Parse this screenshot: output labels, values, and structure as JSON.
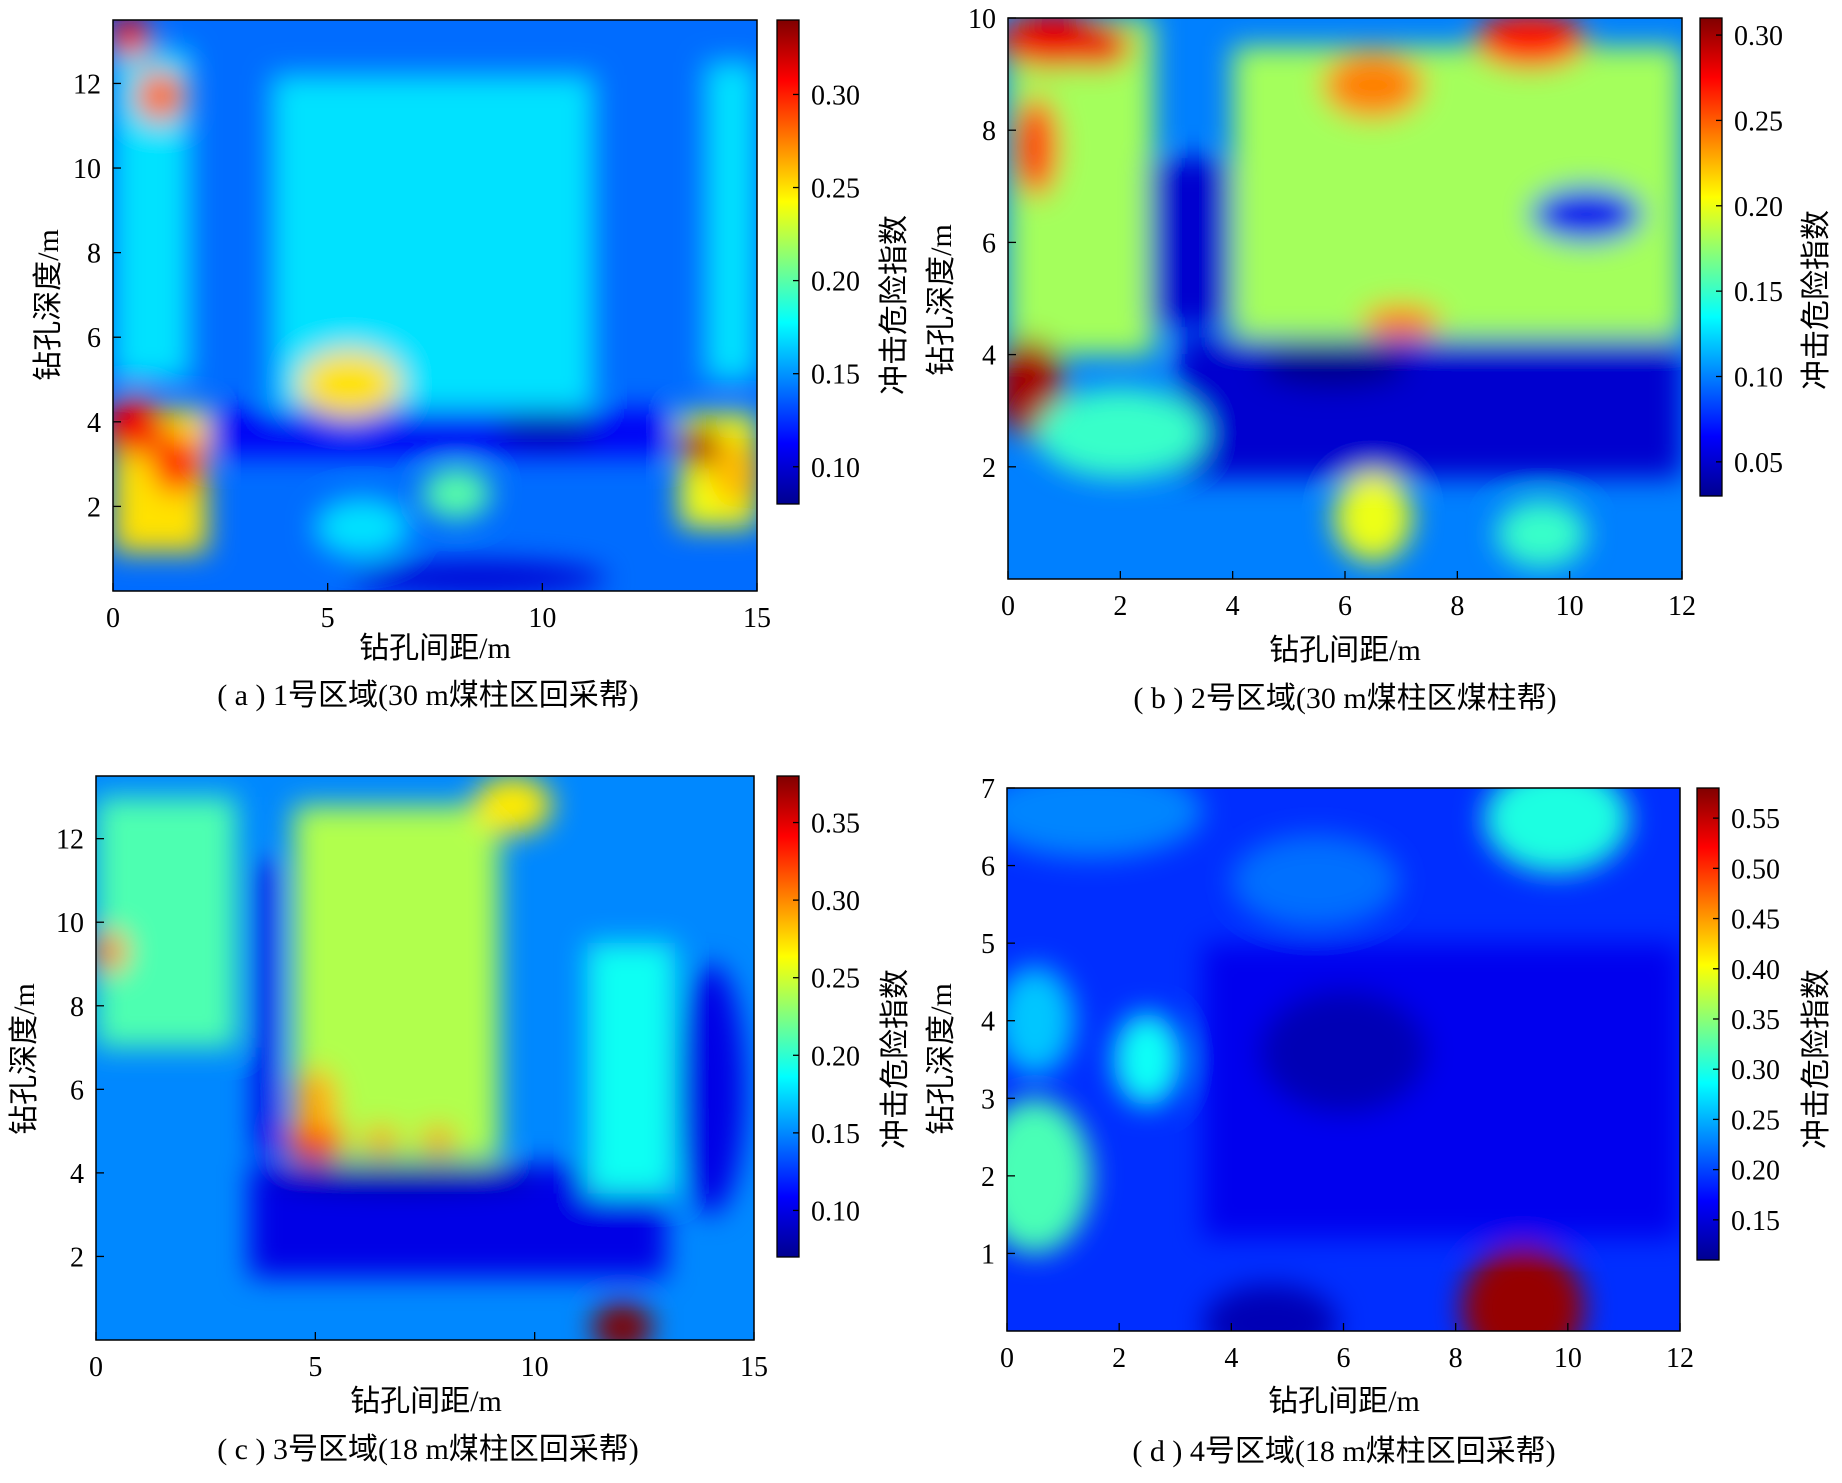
{
  "colormap": [
    "#00008f",
    "#0000ff",
    "#0080ff",
    "#00ffff",
    "#80ff80",
    "#ffff00",
    "#ff8000",
    "#ff0000",
    "#800000"
  ],
  "chart_data": [
    {
      "type": "heatmap",
      "caption": "( a ) 1号区域(30 m煤柱区回采帮)",
      "xlabel": "钻孔间距/m",
      "ylabel": "钻孔深度/m",
      "colorbar_label": "冲击危险指数",
      "xlim": [
        0,
        15
      ],
      "ylim": [
        0,
        13.5
      ],
      "xticks": [
        0,
        5,
        10,
        15
      ],
      "yticks": [
        2,
        4,
        6,
        8,
        10,
        12
      ],
      "clim": [
        0.08,
        0.34
      ],
      "cticks": [
        0.1,
        0.15,
        0.2,
        0.25,
        0.3
      ],
      "background": 0.14,
      "features": [
        {
          "shape": "rect",
          "x0": 4.6,
          "x1": 7.6,
          "y0": 4.3,
          "y1": 10.8,
          "value": 0.2
        },
        {
          "shape": "rect",
          "x0": 3.7,
          "x1": 11.2,
          "y0": 4.3,
          "y1": 12.2,
          "value": 0.17
        },
        {
          "shape": "rect",
          "x0": 2.0,
          "x1": 13.0,
          "y0": 3.2,
          "y1": 4.3,
          "value": 0.11
        },
        {
          "shape": "rect",
          "x0": 0.0,
          "x1": 2.2,
          "y0": 0.9,
          "y1": 4.3,
          "value": 0.25
        },
        {
          "shape": "rect",
          "x0": 13.2,
          "x1": 15.0,
          "y0": 1.5,
          "y1": 4.2,
          "value": 0.24
        },
        {
          "shape": "rect",
          "x0": 0.0,
          "x1": 1.8,
          "y0": 5.0,
          "y1": 12.8,
          "value": 0.17
        },
        {
          "shape": "rect",
          "x0": 13.8,
          "x1": 15.0,
          "y0": 5.0,
          "y1": 12.5,
          "value": 0.17
        },
        {
          "shape": "blob",
          "x": 5.5,
          "y": 4.9,
          "rx": 1.2,
          "ry": 0.8,
          "value": 0.25
        },
        {
          "shape": "blob",
          "x": 0.5,
          "y": 3.9,
          "rx": 0.7,
          "ry": 0.7,
          "value": 0.31
        },
        {
          "shape": "blob",
          "x": 1.5,
          "y": 3.0,
          "rx": 0.6,
          "ry": 0.7,
          "value": 0.3
        },
        {
          "shape": "blob",
          "x": 0.4,
          "y": 13.1,
          "rx": 0.5,
          "ry": 0.5,
          "value": 0.31
        },
        {
          "shape": "blob",
          "x": 1.1,
          "y": 11.7,
          "rx": 0.6,
          "ry": 0.6,
          "value": 0.28
        },
        {
          "shape": "blob",
          "x": 13.7,
          "y": 3.4,
          "rx": 0.5,
          "ry": 0.5,
          "value": 0.33
        },
        {
          "shape": "blob",
          "x": 14.5,
          "y": 2.8,
          "rx": 0.6,
          "ry": 0.8,
          "value": 0.26
        },
        {
          "shape": "blob",
          "x": 10.1,
          "y": 3.8,
          "rx": 1.2,
          "ry": 0.4,
          "value": 0.09
        },
        {
          "shape": "blob",
          "x": 8.0,
          "y": 2.3,
          "rx": 0.8,
          "ry": 0.6,
          "value": 0.2
        },
        {
          "shape": "blob",
          "x": 5.8,
          "y": 1.5,
          "rx": 1.1,
          "ry": 0.7,
          "value": 0.17
        },
        {
          "shape": "blob",
          "x": 8.5,
          "y": 0.3,
          "rx": 3.0,
          "ry": 0.4,
          "value": 0.1
        }
      ]
    },
    {
      "type": "heatmap",
      "caption": "( b ) 2号区域(30 m煤柱区煤柱帮)",
      "xlabel": "钻孔间距/m",
      "ylabel": "钻孔深度/m",
      "colorbar_label": "冲击危险指数",
      "xlim": [
        0,
        12
      ],
      "ylim": [
        0,
        10
      ],
      "xticks": [
        0,
        2,
        4,
        6,
        8,
        10,
        12
      ],
      "yticks": [
        2,
        4,
        6,
        8,
        10
      ],
      "clim": [
        0.03,
        0.31
      ],
      "cticks": [
        0.05,
        0.1,
        0.15,
        0.2,
        0.25,
        0.3
      ],
      "background": 0.1,
      "features": [
        {
          "shape": "rect",
          "x0": 4.0,
          "x1": 12.0,
          "y0": 4.3,
          "y1": 9.5,
          "value": 0.18
        },
        {
          "shape": "rect",
          "x0": 0.0,
          "x1": 2.6,
          "y0": 4.0,
          "y1": 10.0,
          "value": 0.18
        },
        {
          "shape": "rect",
          "x0": 2.5,
          "x1": 4.0,
          "y0": 4.5,
          "y1": 7.5,
          "value": 0.05
        },
        {
          "shape": "rect",
          "x0": 3.0,
          "x1": 12.0,
          "y0": 1.8,
          "y1": 4.3,
          "value": 0.05
        },
        {
          "shape": "blob",
          "x": 0.8,
          "y": 9.6,
          "rx": 1.0,
          "ry": 0.5,
          "value": 0.28
        },
        {
          "shape": "blob",
          "x": 1.6,
          "y": 9.5,
          "rx": 0.6,
          "ry": 0.4,
          "value": 0.28
        },
        {
          "shape": "blob",
          "x": 9.3,
          "y": 9.6,
          "rx": 1.0,
          "ry": 0.5,
          "value": 0.27
        },
        {
          "shape": "blob",
          "x": 0.4,
          "y": 3.4,
          "rx": 0.6,
          "ry": 0.9,
          "value": 0.3
        },
        {
          "shape": "blob",
          "x": 0.5,
          "y": 7.7,
          "rx": 0.4,
          "ry": 0.9,
          "value": 0.26
        },
        {
          "shape": "blob",
          "x": 6.5,
          "y": 8.8,
          "rx": 0.9,
          "ry": 0.6,
          "value": 0.24
        },
        {
          "shape": "blob",
          "x": 10.3,
          "y": 6.5,
          "rx": 1.0,
          "ry": 0.5,
          "value": 0.06
        },
        {
          "shape": "blob",
          "x": 5.8,
          "y": 3.8,
          "rx": 1.3,
          "ry": 0.4,
          "value": 0.03
        },
        {
          "shape": "blob",
          "x": 6.5,
          "y": 1.1,
          "rx": 0.7,
          "ry": 0.8,
          "value": 0.2
        },
        {
          "shape": "blob",
          "x": 7.0,
          "y": 4.6,
          "rx": 0.7,
          "ry": 0.3,
          "value": 0.24
        },
        {
          "shape": "blob",
          "x": 2.0,
          "y": 2.6,
          "rx": 1.5,
          "ry": 0.8,
          "value": 0.15
        },
        {
          "shape": "blob",
          "x": 9.5,
          "y": 0.8,
          "rx": 0.8,
          "ry": 0.6,
          "value": 0.15
        }
      ]
    },
    {
      "type": "heatmap",
      "caption": "( c ) 3号区域(18 m煤柱区回采帮)",
      "xlabel": "钻孔间距/m",
      "ylabel": "钻孔深度/m",
      "colorbar_label": "冲击危险指数",
      "xlim": [
        0,
        15
      ],
      "ylim": [
        0,
        13.5
      ],
      "xticks": [
        0,
        5,
        10,
        15
      ],
      "yticks": [
        2,
        4,
        6,
        8,
        10,
        12
      ],
      "clim": [
        0.07,
        0.38
      ],
      "cticks": [
        0.1,
        0.15,
        0.2,
        0.25,
        0.3,
        0.35
      ],
      "background": 0.15,
      "features": [
        {
          "shape": "rect",
          "x0": 4.5,
          "x1": 9.2,
          "y0": 4.3,
          "y1": 12.8,
          "value": 0.24
        },
        {
          "shape": "rect",
          "x0": 3.6,
          "x1": 4.2,
          "y0": 4.5,
          "y1": 11.5,
          "value": 0.1
        },
        {
          "shape": "rect",
          "x0": 3.5,
          "x1": 13.0,
          "y0": 1.5,
          "y1": 4.2,
          "value": 0.1
        },
        {
          "shape": "rect",
          "x0": 0.0,
          "x1": 3.2,
          "y0": 7.0,
          "y1": 13.0,
          "value": 0.21
        },
        {
          "shape": "rect",
          "x0": 11.2,
          "x1": 13.2,
          "y0": 3.5,
          "y1": 9.5,
          "value": 0.19
        },
        {
          "shape": "blob",
          "x": 5.0,
          "y": 4.8,
          "rx": 0.7,
          "ry": 0.5,
          "value": 0.33
        },
        {
          "shape": "blob",
          "x": 5.0,
          "y": 5.7,
          "rx": 0.5,
          "ry": 0.8,
          "value": 0.29
        },
        {
          "shape": "blob",
          "x": 6.5,
          "y": 4.8,
          "rx": 0.4,
          "ry": 0.3,
          "value": 0.3
        },
        {
          "shape": "blob",
          "x": 7.8,
          "y": 4.8,
          "rx": 0.4,
          "ry": 0.3,
          "value": 0.3
        },
        {
          "shape": "blob",
          "x": 0.3,
          "y": 9.3,
          "rx": 0.4,
          "ry": 0.5,
          "value": 0.3
        },
        {
          "shape": "blob",
          "x": 9.5,
          "y": 12.8,
          "rx": 0.9,
          "ry": 0.7,
          "value": 0.27
        },
        {
          "shape": "blob",
          "x": 12.0,
          "y": 0.3,
          "rx": 0.7,
          "ry": 0.6,
          "value": 0.38
        },
        {
          "shape": "blob",
          "x": 7.0,
          "y": 3.9,
          "rx": 3.0,
          "ry": 0.3,
          "value": 0.07
        },
        {
          "shape": "blob",
          "x": 14.0,
          "y": 6.0,
          "rx": 0.8,
          "ry": 3.0,
          "value": 0.1
        }
      ]
    },
    {
      "type": "heatmap",
      "caption": "( d ) 4号区域(18 m煤柱区回采帮)",
      "xlabel": "钻孔间距/m",
      "ylabel": "钻孔深度/m",
      "colorbar_label": "冲击危险指数",
      "xlim": [
        0,
        12
      ],
      "ylim": [
        0,
        7
      ],
      "xticks": [
        0,
        2,
        4,
        6,
        8,
        10,
        12
      ],
      "yticks": [
        1,
        2,
        3,
        4,
        5,
        6,
        7
      ],
      "clim": [
        0.11,
        0.58
      ],
      "cticks": [
        0.15,
        0.2,
        0.25,
        0.3,
        0.35,
        0.4,
        0.45,
        0.5,
        0.55
      ],
      "background": 0.19,
      "features": [
        {
          "shape": "rect",
          "x0": 3.5,
          "x1": 12.0,
          "y0": 1.2,
          "y1": 5.0,
          "value": 0.16
        },
        {
          "shape": "blob",
          "x": 6.0,
          "y": 3.6,
          "rx": 1.5,
          "ry": 0.8,
          "value": 0.13
        },
        {
          "shape": "blob",
          "x": 0.5,
          "y": 2.0,
          "rx": 1.0,
          "ry": 1.0,
          "value": 0.32
        },
        {
          "shape": "blob",
          "x": 0.5,
          "y": 4.0,
          "rx": 0.7,
          "ry": 0.7,
          "value": 0.26
        },
        {
          "shape": "blob",
          "x": 2.5,
          "y": 3.5,
          "rx": 0.6,
          "ry": 0.6,
          "value": 0.29
        },
        {
          "shape": "blob",
          "x": 9.2,
          "y": 0.3,
          "rx": 1.1,
          "ry": 0.8,
          "value": 0.57
        },
        {
          "shape": "blob",
          "x": 9.8,
          "y": 6.6,
          "rx": 1.3,
          "ry": 0.7,
          "value": 0.3
        },
        {
          "shape": "blob",
          "x": 1.5,
          "y": 6.7,
          "rx": 2.0,
          "ry": 0.6,
          "value": 0.23
        },
        {
          "shape": "blob",
          "x": 5.5,
          "y": 5.8,
          "rx": 1.5,
          "ry": 0.6,
          "value": 0.22
        },
        {
          "shape": "blob",
          "x": 11.0,
          "y": 3.0,
          "rx": 1.0,
          "ry": 1.5,
          "value": 0.16
        },
        {
          "shape": "blob",
          "x": 4.7,
          "y": 0.1,
          "rx": 1.2,
          "ry": 0.5,
          "value": 0.13
        }
      ]
    }
  ]
}
